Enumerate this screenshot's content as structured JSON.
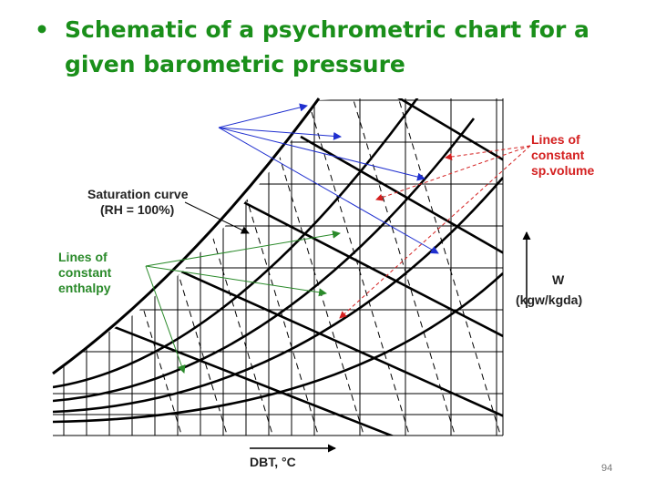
{
  "slide": {
    "bullet": "•",
    "title": "Schematic of a psychrometric chart for a given barometric pressure",
    "page_number": "94"
  },
  "colors": {
    "title": "#1a8f1a",
    "blue_arrows": "#1f2fcf",
    "green_arrows": "#2a8a2a",
    "red_arrows": "#d42020",
    "chart_lines": "#000000"
  },
  "labels": {
    "saturation_line1": "Saturation curve",
    "saturation_line2": "(RH = 100%)",
    "enthalpy_line1": "Lines of",
    "enthalpy_line2": "constant",
    "enthalpy_line3": "enthalpy",
    "specvol_line1": "Lines of",
    "specvol_line2": "constant",
    "specvol_line3": "sp.volume",
    "w_axis_line1": "W",
    "w_axis_line2": "(kgw/kgda)",
    "dbt_axis": "DBT, °C"
  }
}
